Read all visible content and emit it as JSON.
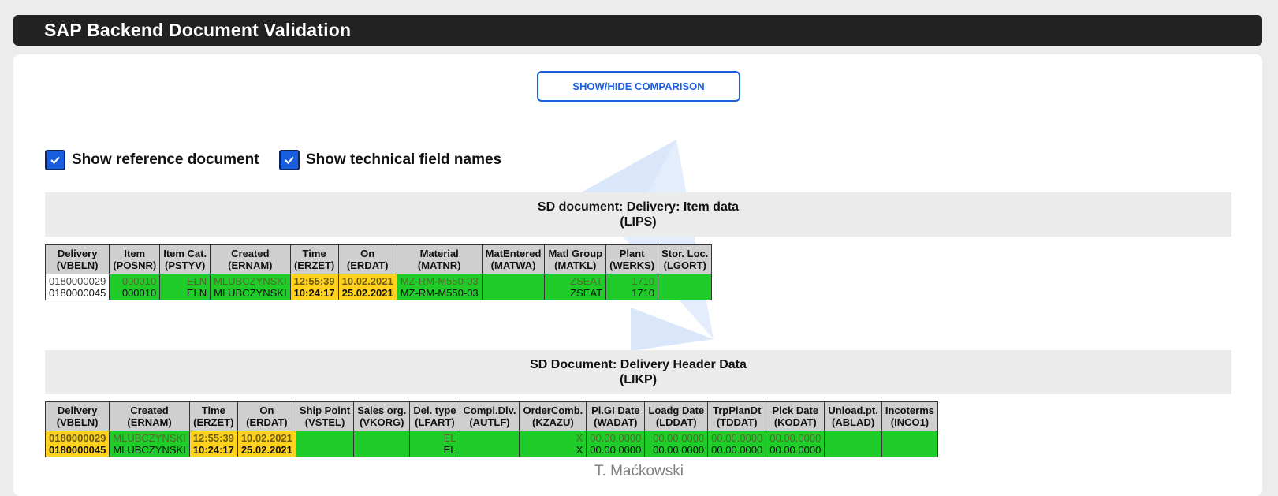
{
  "app": {
    "title": "SAP Backend Document Validation"
  },
  "toolbar": {
    "toggle_label": "SHOW/HIDE COMPARISON"
  },
  "options": {
    "show_reference": {
      "label": "Show reference document",
      "checked": true
    },
    "show_technical": {
      "label": "Show technical field names",
      "checked": true
    }
  },
  "sections": {
    "lips": {
      "title": "SD document: Delivery: Item data",
      "subtitle": "(LIPS)",
      "headers": [
        [
          "Delivery",
          "(VBELN)"
        ],
        [
          "Item",
          "(POSNR)"
        ],
        [
          "Item Cat.",
          "(PSTYV)"
        ],
        [
          "Created",
          "(ERNAM)"
        ],
        [
          "Time",
          "(ERZET)"
        ],
        [
          "On",
          "(ERDAT)"
        ],
        [
          "Material",
          "(MATNR)"
        ],
        [
          "MatEntered",
          "(MATWA)"
        ],
        [
          "Matl Group",
          "(MATKL)"
        ],
        [
          "Plant",
          "(WERKS)"
        ],
        [
          "Stor. Loc.",
          "(LGORT)"
        ]
      ],
      "cells": [
        [
          "w",
          "0180000029",
          "0180000045"
        ],
        [
          "g",
          "000010",
          "000010"
        ],
        [
          "g",
          "ELN",
          "ELN"
        ],
        [
          "g",
          "MLUBCZYNSKI",
          "MLUBCZYNSKI"
        ],
        [
          "y",
          "12:55:39",
          "10:24:17"
        ],
        [
          "y",
          "10.02.2021",
          "25.02.2021"
        ],
        [
          "g",
          "MZ-RM-M550-03",
          "MZ-RM-M550-03"
        ],
        [
          "g",
          "",
          ""
        ],
        [
          "g",
          "ZSEAT",
          "ZSEAT"
        ],
        [
          "g",
          "1710",
          "1710"
        ],
        [
          "g",
          "",
          ""
        ]
      ]
    },
    "likp": {
      "title": "SD Document: Delivery Header Data",
      "subtitle": "(LIKP)",
      "headers": [
        [
          "Delivery",
          "(VBELN)"
        ],
        [
          "Created",
          "(ERNAM)"
        ],
        [
          "Time",
          "(ERZET)"
        ],
        [
          "On",
          "(ERDAT)"
        ],
        [
          "Ship Point",
          "(VSTEL)"
        ],
        [
          "Sales org.",
          "(VKORG)"
        ],
        [
          "Del. type",
          "(LFART)"
        ],
        [
          "Compl.Dlv.",
          "(AUTLF)"
        ],
        [
          "OrderComb.",
          "(KZAZU)"
        ],
        [
          "Pl.GI Date",
          "(WADAT)"
        ],
        [
          "Loadg Date",
          "(LDDAT)"
        ],
        [
          "TrpPlanDt",
          "(TDDAT)"
        ],
        [
          "Pick Date",
          "(KODAT)"
        ],
        [
          "Unload.pt.",
          "(ABLAD)"
        ],
        [
          "Incoterms",
          "(INCO1)"
        ]
      ],
      "cells": [
        [
          "y",
          "0180000029",
          "0180000045"
        ],
        [
          "g",
          "MLUBCZYNSKI",
          "MLUBCZYNSKI"
        ],
        [
          "y",
          "12:55:39",
          "10:24:17"
        ],
        [
          "y",
          "10.02.2021",
          "25.02.2021"
        ],
        [
          "g",
          "",
          ""
        ],
        [
          "g",
          "",
          ""
        ],
        [
          "g",
          "EL",
          "EL"
        ],
        [
          "g",
          "",
          ""
        ],
        [
          "g",
          "X",
          "X"
        ],
        [
          "g",
          "00.00.0000",
          "00.00.0000"
        ],
        [
          "g",
          "00.00.0000",
          "00.00.0000"
        ],
        [
          "g",
          "00.00.0000",
          "00.00.0000"
        ],
        [
          "g",
          "00.00.0000",
          "00.00.0000"
        ],
        [
          "g",
          "",
          ""
        ],
        [
          "g",
          "",
          ""
        ]
      ]
    }
  },
  "footer": {
    "author": "T. Maćkowski"
  },
  "colors": {
    "accent": "#1a5ee0",
    "match": "#1fcc29",
    "diff": "#ffd21d",
    "header_bar": "#222222"
  }
}
